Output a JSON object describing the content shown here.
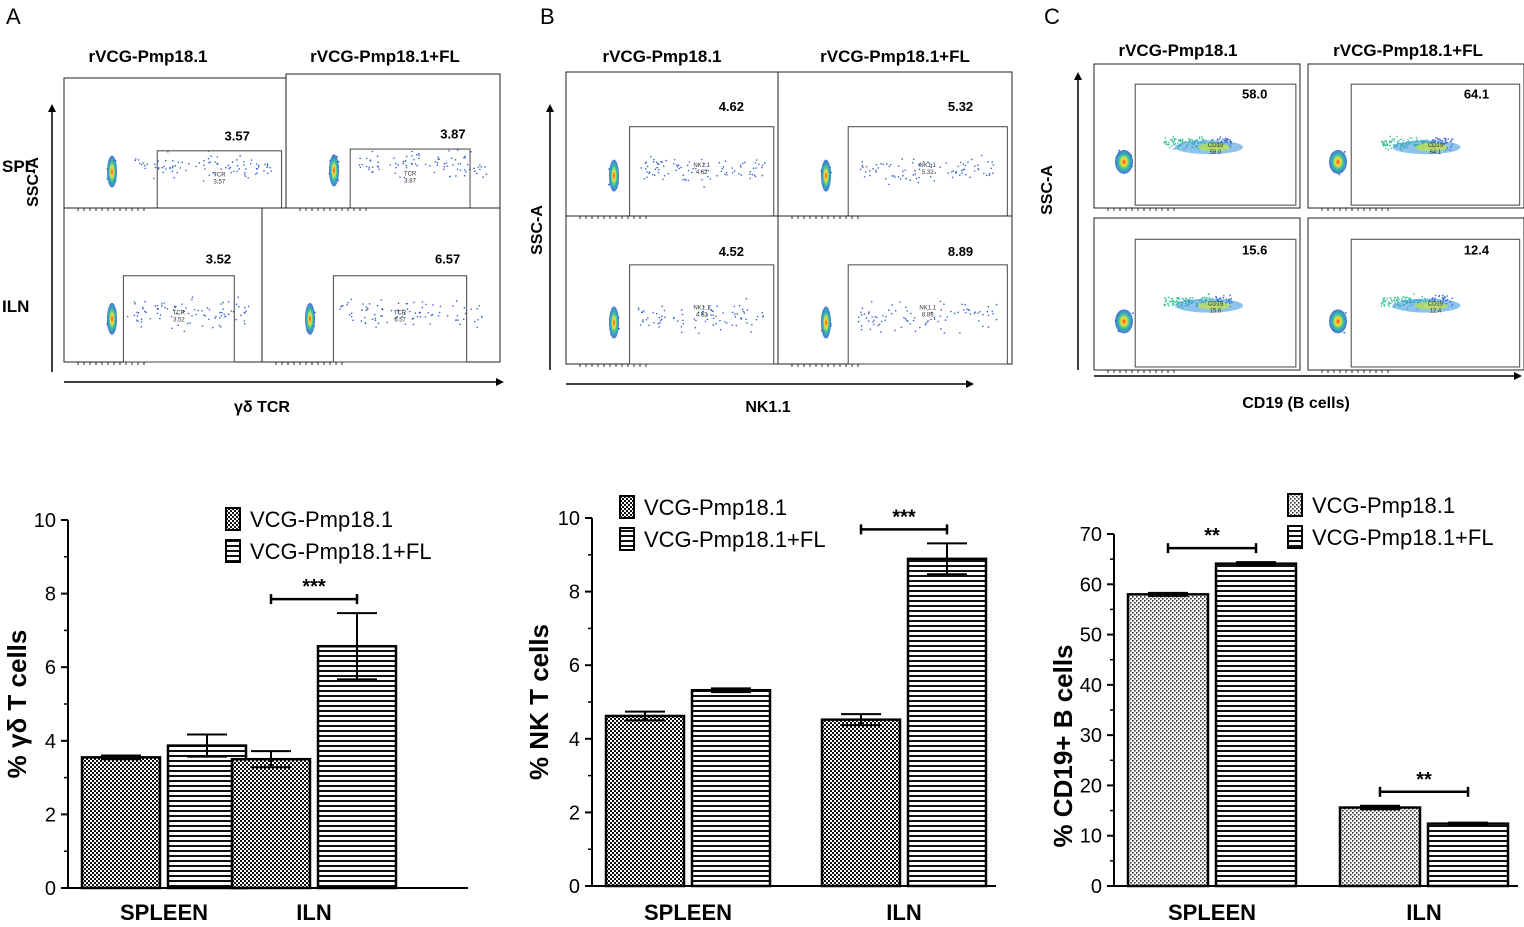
{
  "panel_letters": [
    "A",
    "B",
    "C"
  ],
  "flow_panels": [
    {
      "letter": "A",
      "col_titles": [
        "rVCG-Pmp18.1",
        "rVCG-Pmp18.1+FL"
      ],
      "row_labels": [
        "SPL",
        "ILN"
      ],
      "y_label": "SSC-A",
      "x_label": "γδ TCR",
      "gate_label": "TCR",
      "gate_values": [
        [
          "3.57",
          "3.87"
        ],
        [
          "3.52",
          "6.57"
        ]
      ],
      "gate_sublabels": [
        [
          "3.57",
          "3.87"
        ],
        [
          "3.52",
          "6.57"
        ]
      ]
    },
    {
      "letter": "B",
      "col_titles": [
        "rVCG-Pmp18.1",
        "rVCG-Pmp18.1+FL"
      ],
      "row_labels": [],
      "y_label": "SSC-A",
      "x_label": "NK1.1",
      "gate_label": "NK1.1",
      "gate_values": [
        [
          "4.62",
          "5.32"
        ],
        [
          "4.52",
          "8.89"
        ]
      ],
      "gate_sublabels": [
        [
          "4.62",
          "5.32"
        ],
        [
          "4.52",
          "8.89"
        ]
      ]
    },
    {
      "letter": "C",
      "col_titles": [
        "rVCG-Pmp18.1",
        "rVCG-Pmp18.1+FL"
      ],
      "row_labels": [],
      "y_label": "SSC-A",
      "x_label": "CD19 (B cells)",
      "gate_label": "CD19",
      "gate_values": [
        [
          "58.0",
          "64.1"
        ],
        [
          "15.6",
          "12.4"
        ]
      ],
      "gate_sublabels": [
        [
          "58.0",
          "64.1"
        ],
        [
          "15.6",
          "12.4"
        ]
      ]
    }
  ],
  "chart_data": [
    {
      "type": "bar",
      "categories": [
        "SPLEEN",
        "ILN"
      ],
      "series": [
        {
          "name": "VCG-Pmp18.1",
          "values": [
            3.55,
            3.5
          ],
          "errors": [
            0.05,
            0.22
          ]
        },
        {
          "name": "VCG-Pmp18.1+FL",
          "values": [
            3.87,
            6.57
          ],
          "errors": [
            0.3,
            0.9
          ]
        }
      ],
      "ylabel": "% γδ T cells",
      "ylim": [
        0,
        10
      ],
      "yticks": [
        "0",
        "2",
        "4",
        "6",
        "8",
        "10"
      ],
      "significance": [
        {
          "category": "ILN",
          "label": "***"
        }
      ]
    },
    {
      "type": "bar",
      "categories": [
        "SPLEEN",
        "ILN"
      ],
      "series": [
        {
          "name": "VCG-Pmp18.1",
          "values": [
            4.62,
            4.52
          ],
          "errors": [
            0.12,
            0.15
          ]
        },
        {
          "name": "VCG-Pmp18.1+FL",
          "values": [
            5.32,
            8.89
          ],
          "errors": [
            0.05,
            0.42
          ]
        }
      ],
      "ylabel": "% NK T cells",
      "ylim": [
        0,
        10
      ],
      "yticks": [
        "0",
        "2",
        "4",
        "6",
        "8",
        "10"
      ],
      "significance": [
        {
          "category": "ILN",
          "label": "***"
        }
      ]
    },
    {
      "type": "bar",
      "categories": [
        "SPLEEN",
        "ILN"
      ],
      "series": [
        {
          "name": "VCG-Pmp18.1",
          "values": [
            58.0,
            15.6
          ],
          "errors": [
            0.3,
            0.35
          ]
        },
        {
          "name": "VCG-Pmp18.1+FL",
          "values": [
            64.1,
            12.4
          ],
          "errors": [
            0.3,
            0.2
          ]
        }
      ],
      "ylabel": "% CD19+ B cells",
      "ylim": [
        0,
        70
      ],
      "yticks": [
        "0",
        "10",
        "20",
        "30",
        "40",
        "50",
        "60",
        "70"
      ],
      "significance": [
        {
          "category": "SPLEEN",
          "label": "**"
        },
        {
          "category": "ILN",
          "label": "**"
        }
      ]
    }
  ]
}
